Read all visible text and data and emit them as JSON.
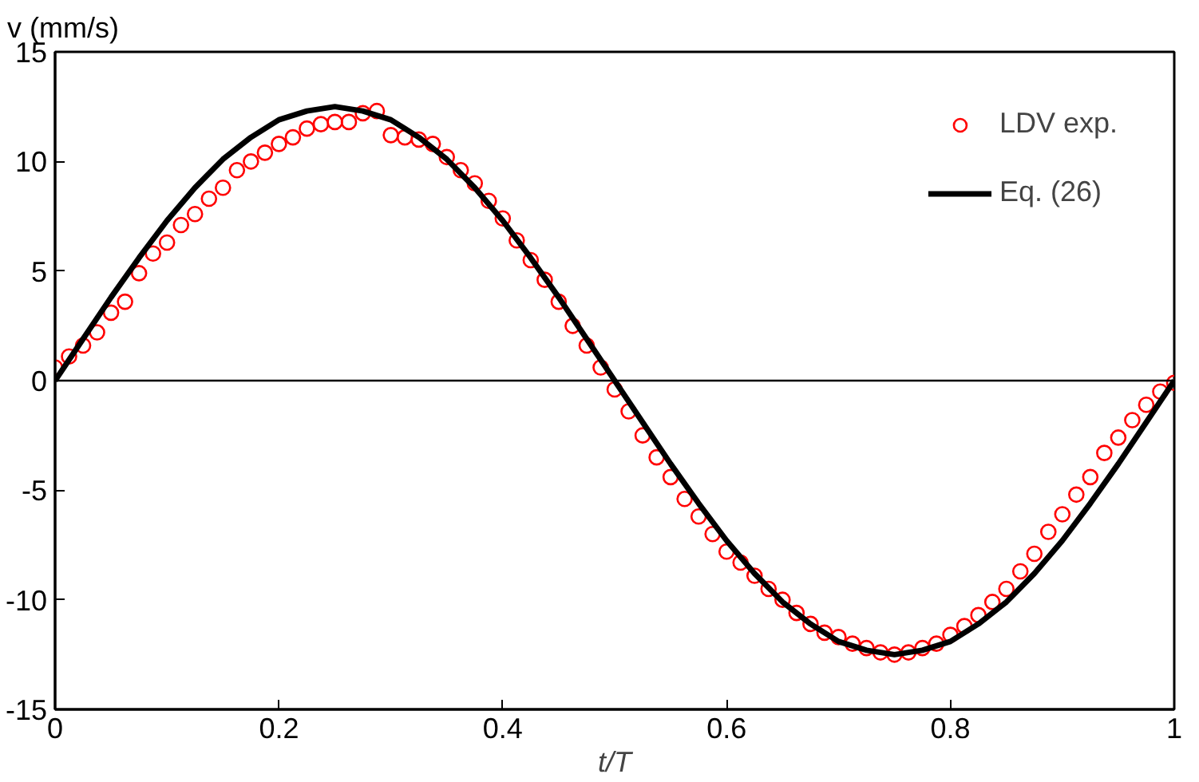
{
  "chart_data": {
    "type": "scatter",
    "xlabel": "t/T",
    "ylabel": "v (mm/s)",
    "xlim": [
      0,
      1
    ],
    "ylim": [
      -15,
      15
    ],
    "xticks": [
      0,
      0.2,
      0.4,
      0.6,
      0.8,
      1
    ],
    "yticks": [
      -15,
      -10,
      -5,
      0,
      5,
      10,
      15
    ],
    "grid": false,
    "legend": "top right",
    "ref_lines": [
      {
        "axis": "y",
        "value": 0,
        "color": "#000000",
        "line_style": "solid"
      }
    ],
    "series": [
      {
        "name": "LDV exp.",
        "marker": "circle",
        "color": "#ff0000",
        "x": [
          0,
          0.0125,
          0.025,
          0.0375,
          0.05,
          0.0625,
          0.075,
          0.0875,
          0.1,
          0.1125,
          0.125,
          0.1375,
          0.15,
          0.1625,
          0.175,
          0.1875,
          0.2,
          0.2125,
          0.225,
          0.2375,
          0.25,
          0.2625,
          0.275,
          0.2875,
          0.3,
          0.3125,
          0.325,
          0.3375,
          0.35,
          0.3625,
          0.375,
          0.3875,
          0.4,
          0.4125,
          0.425,
          0.4375,
          0.45,
          0.4625,
          0.475,
          0.4875,
          0.5,
          0.5125,
          0.525,
          0.5375,
          0.55,
          0.5625,
          0.575,
          0.5875,
          0.6,
          0.6125,
          0.625,
          0.6375,
          0.65,
          0.6625,
          0.675,
          0.6875,
          0.7,
          0.7125,
          0.725,
          0.7375,
          0.75,
          0.7625,
          0.775,
          0.7875,
          0.8,
          0.8125,
          0.825,
          0.8375,
          0.85,
          0.8625,
          0.875,
          0.8875,
          0.9,
          0.9125,
          0.925,
          0.9375,
          0.95,
          0.9625,
          0.975,
          0.9875,
          1
        ],
        "values": [
          0.6,
          1.1,
          1.6,
          2.2,
          3.1,
          3.6,
          4.9,
          5.8,
          6.3,
          7.1,
          7.6,
          8.3,
          8.8,
          9.6,
          10.0,
          10.4,
          10.8,
          11.1,
          11.5,
          11.7,
          11.8,
          11.8,
          12.2,
          12.3,
          11.2,
          11.1,
          11.0,
          10.8,
          10.2,
          9.6,
          9.0,
          8.2,
          7.4,
          6.4,
          5.5,
          4.6,
          3.6,
          2.5,
          1.6,
          0.6,
          -0.4,
          -1.4,
          -2.5,
          -3.5,
          -4.4,
          -5.4,
          -6.2,
          -7.0,
          -7.8,
          -8.3,
          -8.9,
          -9.5,
          -10.0,
          -10.6,
          -11.1,
          -11.5,
          -11.7,
          -12.0,
          -12.2,
          -12.4,
          -12.5,
          -12.4,
          -12.2,
          -12.0,
          -11.6,
          -11.2,
          -10.7,
          -10.1,
          -9.5,
          -8.7,
          -7.9,
          -6.9,
          -6.1,
          -5.2,
          -4.4,
          -3.3,
          -2.6,
          -1.8,
          -1.1,
          -0.5,
          -0.1
        ]
      },
      {
        "name": "Eq. (26)",
        "type": "line",
        "marker": "none",
        "line_style": "solid",
        "color": "#000000",
        "x": [
          0,
          0.025,
          0.05,
          0.075,
          0.1,
          0.125,
          0.15,
          0.175,
          0.2,
          0.225,
          0.25,
          0.275,
          0.3,
          0.325,
          0.35,
          0.375,
          0.4,
          0.425,
          0.45,
          0.475,
          0.5,
          0.525,
          0.55,
          0.575,
          0.6,
          0.625,
          0.65,
          0.675,
          0.7,
          0.725,
          0.75,
          0.775,
          0.8,
          0.825,
          0.85,
          0.875,
          0.9,
          0.925,
          0.95,
          0.975,
          1
        ],
        "values": [
          0,
          1.9,
          3.8,
          5.6,
          7.3,
          8.8,
          10.1,
          11.1,
          11.9,
          12.3,
          12.5,
          12.3,
          11.9,
          11.1,
          10.1,
          8.8,
          7.3,
          5.6,
          3.8,
          1.9,
          0,
          -1.9,
          -3.8,
          -5.6,
          -7.3,
          -8.8,
          -10.1,
          -11.1,
          -11.9,
          -12.3,
          -12.5,
          -12.3,
          -11.9,
          -11.1,
          -10.1,
          -8.8,
          -7.3,
          -5.6,
          -3.8,
          -1.9,
          0
        ]
      }
    ]
  }
}
